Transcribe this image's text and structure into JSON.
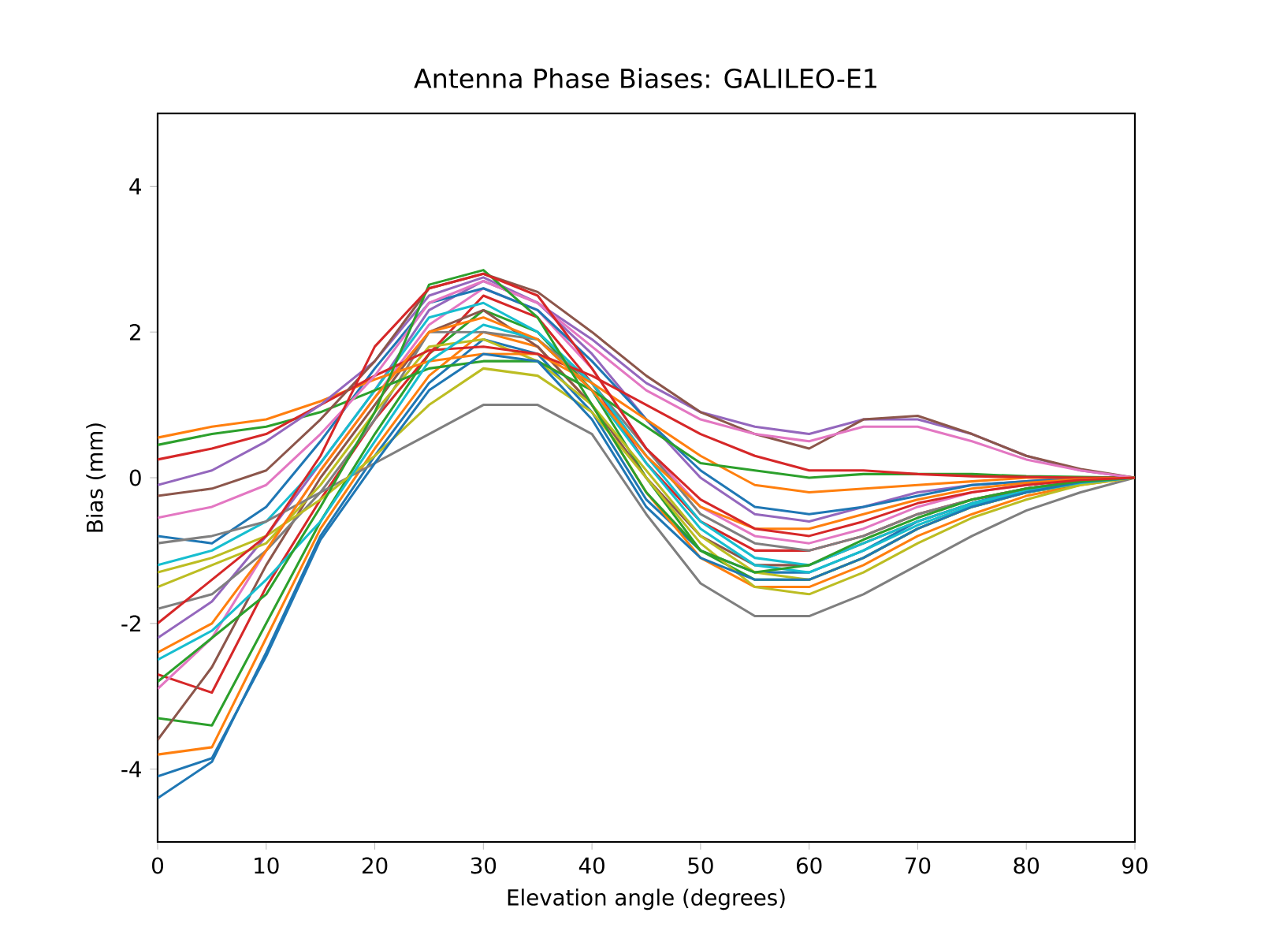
{
  "chart_data": {
    "type": "line",
    "title": "Antenna Phase Biases: GALILEO-E1",
    "xlabel": "Elevation angle (degrees)",
    "ylabel": "Bias (mm)",
    "xlim": [
      0,
      90
    ],
    "ylim": [
      -5,
      5
    ],
    "xticks": [
      0,
      10,
      20,
      30,
      40,
      50,
      60,
      70,
      80,
      90
    ],
    "yticks": [
      -4,
      -2,
      0,
      2,
      4
    ],
    "grid": false,
    "x": [
      0,
      5,
      10,
      15,
      20,
      25,
      30,
      35,
      40,
      45,
      50,
      55,
      60,
      65,
      70,
      75,
      80,
      85,
      90
    ],
    "series": [
      {
        "color": "#1f77b4",
        "values": [
          -4.4,
          -3.9,
          -2.4,
          -0.8,
          0.3,
          1.3,
          1.9,
          1.7,
          0.9,
          -0.3,
          -1.0,
          -1.3,
          -1.3,
          -1.0,
          -0.6,
          -0.35,
          -0.15,
          -0.05,
          0
        ]
      },
      {
        "color": "#ff7f0e",
        "values": [
          -3.8,
          -3.7,
          -2.2,
          -0.7,
          0.4,
          1.4,
          2.0,
          1.8,
          1.0,
          -0.2,
          -1.1,
          -1.5,
          -1.5,
          -1.2,
          -0.8,
          -0.5,
          -0.25,
          -0.1,
          0
        ]
      },
      {
        "color": "#2ca02c",
        "values": [
          -3.3,
          -3.4,
          -2.0,
          -0.6,
          0.6,
          1.7,
          2.3,
          2.0,
          1.2,
          0.0,
          -1.0,
          -1.4,
          -1.4,
          -1.1,
          -0.7,
          -0.4,
          -0.2,
          -0.08,
          0
        ]
      },
      {
        "color": "#d62728",
        "values": [
          -2.7,
          -2.95,
          -1.5,
          -0.3,
          0.8,
          1.7,
          2.5,
          2.2,
          1.3,
          0.2,
          -0.6,
          -1.0,
          -1.0,
          -0.8,
          -0.5,
          -0.3,
          -0.15,
          -0.05,
          0
        ]
      },
      {
        "color": "#9467bd",
        "values": [
          -2.2,
          -1.7,
          -0.8,
          0.2,
          1.2,
          2.3,
          2.7,
          2.4,
          1.7,
          0.8,
          0.0,
          -0.5,
          -0.6,
          -0.4,
          -0.2,
          -0.1,
          -0.05,
          0,
          0
        ]
      },
      {
        "color": "#8c564b",
        "values": [
          -3.6,
          -2.6,
          -1.2,
          0.0,
          1.0,
          2.0,
          2.3,
          1.8,
          1.0,
          0.0,
          -0.8,
          -1.2,
          -1.2,
          -0.9,
          -0.6,
          -0.35,
          -0.2,
          -0.08,
          0
        ]
      },
      {
        "color": "#e377c2",
        "values": [
          -2.9,
          -2.2,
          -1.0,
          0.1,
          1.1,
          2.1,
          2.6,
          2.3,
          1.5,
          0.4,
          -0.4,
          -0.8,
          -0.9,
          -0.7,
          -0.4,
          -0.2,
          -0.1,
          -0.03,
          0
        ]
      },
      {
        "color": "#7f7f7f",
        "values": [
          -1.8,
          -1.6,
          -1.0,
          -0.2,
          0.8,
          2.0,
          2.0,
          1.9,
          1.3,
          0.4,
          -0.5,
          -0.9,
          -1.0,
          -0.8,
          -0.5,
          -0.3,
          -0.15,
          -0.05,
          0
        ]
      },
      {
        "color": "#bcbd22",
        "values": [
          -1.5,
          -1.2,
          -0.9,
          -0.1,
          0.9,
          1.8,
          1.9,
          1.6,
          1.0,
          0.1,
          -0.8,
          -1.3,
          -1.4,
          -1.1,
          -0.7,
          -0.4,
          -0.2,
          -0.08,
          0
        ]
      },
      {
        "color": "#17becf",
        "values": [
          -1.2,
          -1.0,
          -0.6,
          0.2,
          1.2,
          2.2,
          2.4,
          2.0,
          1.3,
          0.3,
          -0.6,
          -1.1,
          -1.2,
          -0.9,
          -0.6,
          -0.35,
          -0.18,
          -0.06,
          0
        ]
      },
      {
        "color": "#1f77b4",
        "values": [
          -0.8,
          -0.9,
          -0.4,
          0.5,
          1.5,
          2.4,
          2.6,
          2.3,
          1.6,
          0.8,
          0.1,
          -0.4,
          -0.5,
          -0.4,
          -0.25,
          -0.1,
          -0.05,
          0,
          0
        ]
      },
      {
        "color": "#ff7f0e",
        "values": [
          0.55,
          0.7,
          0.8,
          1.05,
          1.35,
          1.6,
          1.7,
          1.7,
          1.3,
          0.8,
          0.3,
          -0.1,
          -0.2,
          -0.15,
          -0.1,
          -0.05,
          0,
          0,
          0
        ]
      },
      {
        "color": "#2ca02c",
        "values": [
          0.45,
          0.6,
          0.7,
          0.9,
          1.2,
          1.5,
          1.6,
          1.6,
          1.2,
          0.7,
          0.2,
          0.1,
          0.0,
          0.05,
          0.05,
          0.05,
          0.02,
          0.01,
          0
        ]
      },
      {
        "color": "#d62728",
        "values": [
          0.25,
          0.4,
          0.6,
          1.0,
          1.4,
          1.75,
          1.8,
          1.7,
          1.4,
          1.0,
          0.6,
          0.3,
          0.1,
          0.1,
          0.05,
          0.02,
          0.01,
          0,
          0
        ]
      },
      {
        "color": "#9467bd",
        "values": [
          -0.1,
          0.1,
          0.5,
          1.0,
          1.6,
          2.5,
          2.75,
          2.4,
          1.9,
          1.3,
          0.9,
          0.7,
          0.6,
          0.8,
          0.8,
          0.6,
          0.3,
          0.1,
          0
        ]
      },
      {
        "color": "#8c564b",
        "values": [
          -0.25,
          -0.15,
          0.1,
          0.8,
          1.6,
          2.6,
          2.8,
          2.55,
          2.0,
          1.4,
          0.9,
          0.6,
          0.4,
          0.8,
          0.85,
          0.6,
          0.3,
          0.12,
          0
        ]
      },
      {
        "color": "#e377c2",
        "values": [
          -0.55,
          -0.4,
          -0.1,
          0.6,
          1.4,
          2.4,
          2.7,
          2.4,
          1.8,
          1.2,
          0.8,
          0.6,
          0.5,
          0.7,
          0.7,
          0.5,
          0.25,
          0.1,
          0
        ]
      },
      {
        "color": "#7f7f7f",
        "values": [
          -0.9,
          -0.8,
          -0.6,
          -0.2,
          0.2,
          0.6,
          1.0,
          1.0,
          0.6,
          -0.5,
          -1.45,
          -1.9,
          -1.9,
          -1.6,
          -1.2,
          -0.8,
          -0.45,
          -0.2,
          0
        ]
      },
      {
        "color": "#bcbd22",
        "values": [
          -1.3,
          -1.1,
          -0.8,
          -0.3,
          0.3,
          1.0,
          1.5,
          1.4,
          0.9,
          0.0,
          -0.9,
          -1.5,
          -1.6,
          -1.3,
          -0.9,
          -0.55,
          -0.3,
          -0.1,
          0
        ]
      },
      {
        "color": "#17becf",
        "values": [
          -2.5,
          -2.1,
          -1.4,
          -0.6,
          0.5,
          1.6,
          2.1,
          1.9,
          1.2,
          0.2,
          -0.7,
          -1.2,
          -1.3,
          -1.0,
          -0.65,
          -0.38,
          -0.2,
          -0.07,
          0
        ]
      },
      {
        "color": "#1f77b4",
        "values": [
          -4.1,
          -3.85,
          -2.45,
          -0.85,
          0.2,
          1.2,
          1.7,
          1.6,
          0.8,
          -0.4,
          -1.1,
          -1.4,
          -1.4,
          -1.1,
          -0.7,
          -0.4,
          -0.2,
          -0.06,
          0
        ]
      },
      {
        "color": "#ff7f0e",
        "values": [
          -2.4,
          -2.0,
          -1.0,
          0.1,
          1.1,
          2.0,
          2.2,
          1.9,
          1.2,
          0.3,
          -0.4,
          -0.7,
          -0.7,
          -0.5,
          -0.3,
          -0.15,
          -0.07,
          -0.02,
          0
        ]
      },
      {
        "color": "#2ca02c",
        "values": [
          -2.8,
          -2.2,
          -1.6,
          -0.4,
          0.9,
          2.65,
          2.85,
          2.2,
          1.0,
          -0.2,
          -1.0,
          -1.3,
          -1.2,
          -0.85,
          -0.55,
          -0.3,
          -0.15,
          -0.05,
          0
        ]
      },
      {
        "color": "#d62728",
        "values": [
          -2.0,
          -1.4,
          -0.8,
          0.3,
          1.8,
          2.6,
          2.8,
          2.5,
          1.5,
          0.4,
          -0.3,
          -0.7,
          -0.8,
          -0.6,
          -0.35,
          -0.2,
          -0.1,
          -0.03,
          0
        ]
      }
    ]
  }
}
